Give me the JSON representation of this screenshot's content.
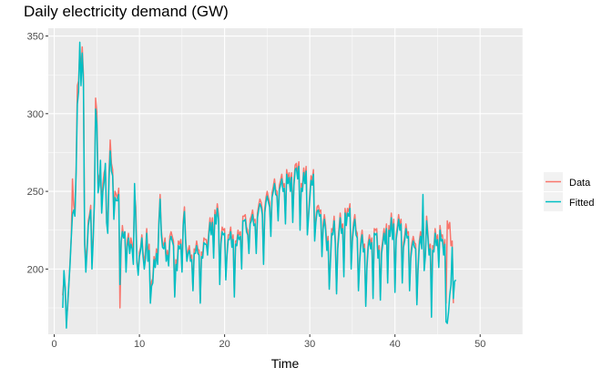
{
  "chart_data": {
    "type": "line",
    "title": "Daily electricity demand (GW)",
    "xlabel": "Time",
    "ylabel": "",
    "xlim": [
      -0.7,
      55.0
    ],
    "ylim": [
      158,
      355
    ],
    "xticks": [
      0,
      10,
      20,
      30,
      40,
      50
    ],
    "yticks": [
      200,
      250,
      300,
      350
    ],
    "grid": true,
    "legend_position": "right",
    "x_start": 1.0,
    "x_step": 0.142857,
    "series": [
      {
        "name": "Data",
        "color": "#F8766D",
        "values": [
          183,
          194,
          188,
          168,
          175,
          190,
          205,
          221,
          258,
          241,
          236,
          265,
          318,
          321,
          341,
          327,
          343,
          325,
          220,
          205,
          214,
          231,
          235,
          241,
          204,
          222,
          245,
          310,
          301,
          255,
          260,
          262,
          240,
          255,
          262,
          265,
          238,
          227,
          262,
          283,
          268,
          264,
          237,
          250,
          248,
          245,
          252,
          175,
          215,
          228,
          220,
          224,
          202,
          218,
          223,
          212,
          220,
          216,
          211,
          248,
          240,
          205,
          198,
          211,
          214,
          222,
          210,
          204,
          212,
          226,
          208,
          216,
          181,
          192,
          194,
          208,
          203,
          213,
          206,
          231,
          248,
          225,
          217,
          215,
          220,
          207,
          212,
          205,
          221,
          224,
          221,
          218,
          183,
          206,
          202,
          218,
          216,
          219,
          200,
          231,
          240,
          220,
          208,
          212,
          215,
          207,
          209,
          187,
          213,
          212,
          218,
          213,
          212,
          179,
          211,
          209,
          220,
          219,
          219,
          212,
          224,
          233,
          225,
          233,
          210,
          238,
          232,
          242,
          235,
          192,
          219,
          227,
          225,
          226,
          195,
          211,
          222,
          222,
          227,
          217,
          222,
          184,
          218,
          218,
          225,
          222,
          224,
          203,
          234,
          234,
          235,
          227,
          225,
          213,
          232,
          234,
          238,
          231,
          232,
          213,
          236,
          241,
          245,
          243,
          238,
          205,
          239,
          246,
          250,
          246,
          243,
          224,
          249,
          253,
          258,
          251,
          250,
          234,
          254,
          257,
          261,
          253,
          255,
          232,
          264,
          258,
          262,
          253,
          262,
          233,
          257,
          267,
          268,
          261,
          269,
          228,
          255,
          253,
          265,
          258,
          266,
          225,
          236,
          248,
          260,
          257,
          264,
          221,
          233,
          240,
          241,
          237,
          238,
          211,
          229,
          235,
          228,
          215,
          221,
          189,
          208,
          226,
          225,
          234,
          219,
          186,
          216,
          226,
          236,
          226,
          229,
          198,
          239,
          231,
          239,
          237,
          242,
          203,
          221,
          230,
          235,
          225,
          223,
          188,
          207,
          219,
          225,
          214,
          216,
          178,
          204,
          217,
          222,
          216,
          220,
          183,
          226,
          225,
          226,
          210,
          215,
          182,
          213,
          219,
          226,
          219,
          229,
          194,
          228,
          224,
          236,
          222,
          232,
          188,
          222,
          228,
          235,
          228,
          232,
          194,
          217,
          221,
          229,
          223,
          224,
          188,
          210,
          217,
          221,
          217,
          216,
          179,
          203,
          218,
          224,
          216,
          240,
          201,
          211,
          234,
          224,
          212,
          216,
          185,
          215,
          214,
          226,
          218,
          222,
          204,
          228,
          221,
          222,
          212,
          219,
          178,
          231,
          226,
          230,
          215,
          218,
          178
        ]
      },
      {
        "name": "Fitted",
        "color": "#00BFC4",
        "values": [
          175,
          199,
          188,
          162,
          177,
          190,
          203,
          220,
          235,
          238,
          234,
          262,
          306,
          314,
          346,
          318,
          339,
          319,
          216,
          198,
          212,
          228,
          233,
          238,
          200,
          218,
          243,
          303,
          293,
          249,
          254,
          270,
          236,
          250,
          256,
          268,
          230,
          223,
          257,
          276,
          263,
          260,
          232,
          246,
          244,
          244,
          248,
          190,
          218,
          224,
          220,
          224,
          198,
          214,
          220,
          210,
          216,
          213,
          203,
          255,
          231,
          204,
          196,
          208,
          212,
          220,
          208,
          200,
          207,
          223,
          205,
          212,
          178,
          189,
          191,
          206,
          201,
          210,
          203,
          228,
          245,
          222,
          214,
          213,
          217,
          205,
          209,
          202,
          218,
          221,
          218,
          215,
          182,
          203,
          199,
          215,
          213,
          216,
          198,
          228,
          237,
          217,
          205,
          210,
          212,
          205,
          206,
          186,
          210,
          210,
          215,
          210,
          209,
          178,
          208,
          207,
          217,
          216,
          216,
          209,
          221,
          230,
          222,
          230,
          207,
          235,
          229,
          239,
          232,
          190,
          216,
          224,
          222,
          223,
          193,
          209,
          219,
          219,
          224,
          214,
          219,
          182,
          216,
          215,
          222,
          219,
          221,
          200,
          231,
          231,
          232,
          224,
          222,
          210,
          229,
          231,
          235,
          228,
          229,
          210,
          233,
          238,
          242,
          240,
          235,
          203,
          236,
          243,
          247,
          243,
          240,
          221,
          246,
          250,
          255,
          248,
          247,
          231,
          251,
          254,
          258,
          250,
          252,
          229,
          261,
          255,
          259,
          250,
          259,
          230,
          254,
          264,
          265,
          258,
          266,
          225,
          252,
          250,
          262,
          255,
          263,
          222,
          233,
          245,
          257,
          254,
          261,
          218,
          230,
          237,
          238,
          234,
          235,
          208,
          226,
          232,
          225,
          212,
          218,
          187,
          205,
          223,
          222,
          231,
          216,
          184,
          213,
          223,
          233,
          223,
          226,
          195,
          236,
          228,
          236,
          234,
          239,
          200,
          218,
          227,
          232,
          222,
          220,
          186,
          204,
          216,
          222,
          211,
          213,
          176,
          201,
          214,
          219,
          213,
          217,
          181,
          223,
          222,
          223,
          207,
          212,
          180,
          210,
          216,
          223,
          216,
          226,
          191,
          225,
          221,
          233,
          219,
          229,
          185,
          219,
          225,
          232,
          225,
          229,
          191,
          214,
          218,
          226,
          220,
          221,
          186,
          207,
          214,
          218,
          214,
          213,
          177,
          200,
          215,
          221,
          213,
          248,
          199,
          208,
          231,
          221,
          209,
          213,
          169,
          212,
          211,
          223,
          215,
          219,
          201,
          225,
          218,
          219,
          209,
          216,
          166,
          165,
          172,
          183,
          190,
          214,
          181,
          192,
          193
        ]
      }
    ]
  }
}
